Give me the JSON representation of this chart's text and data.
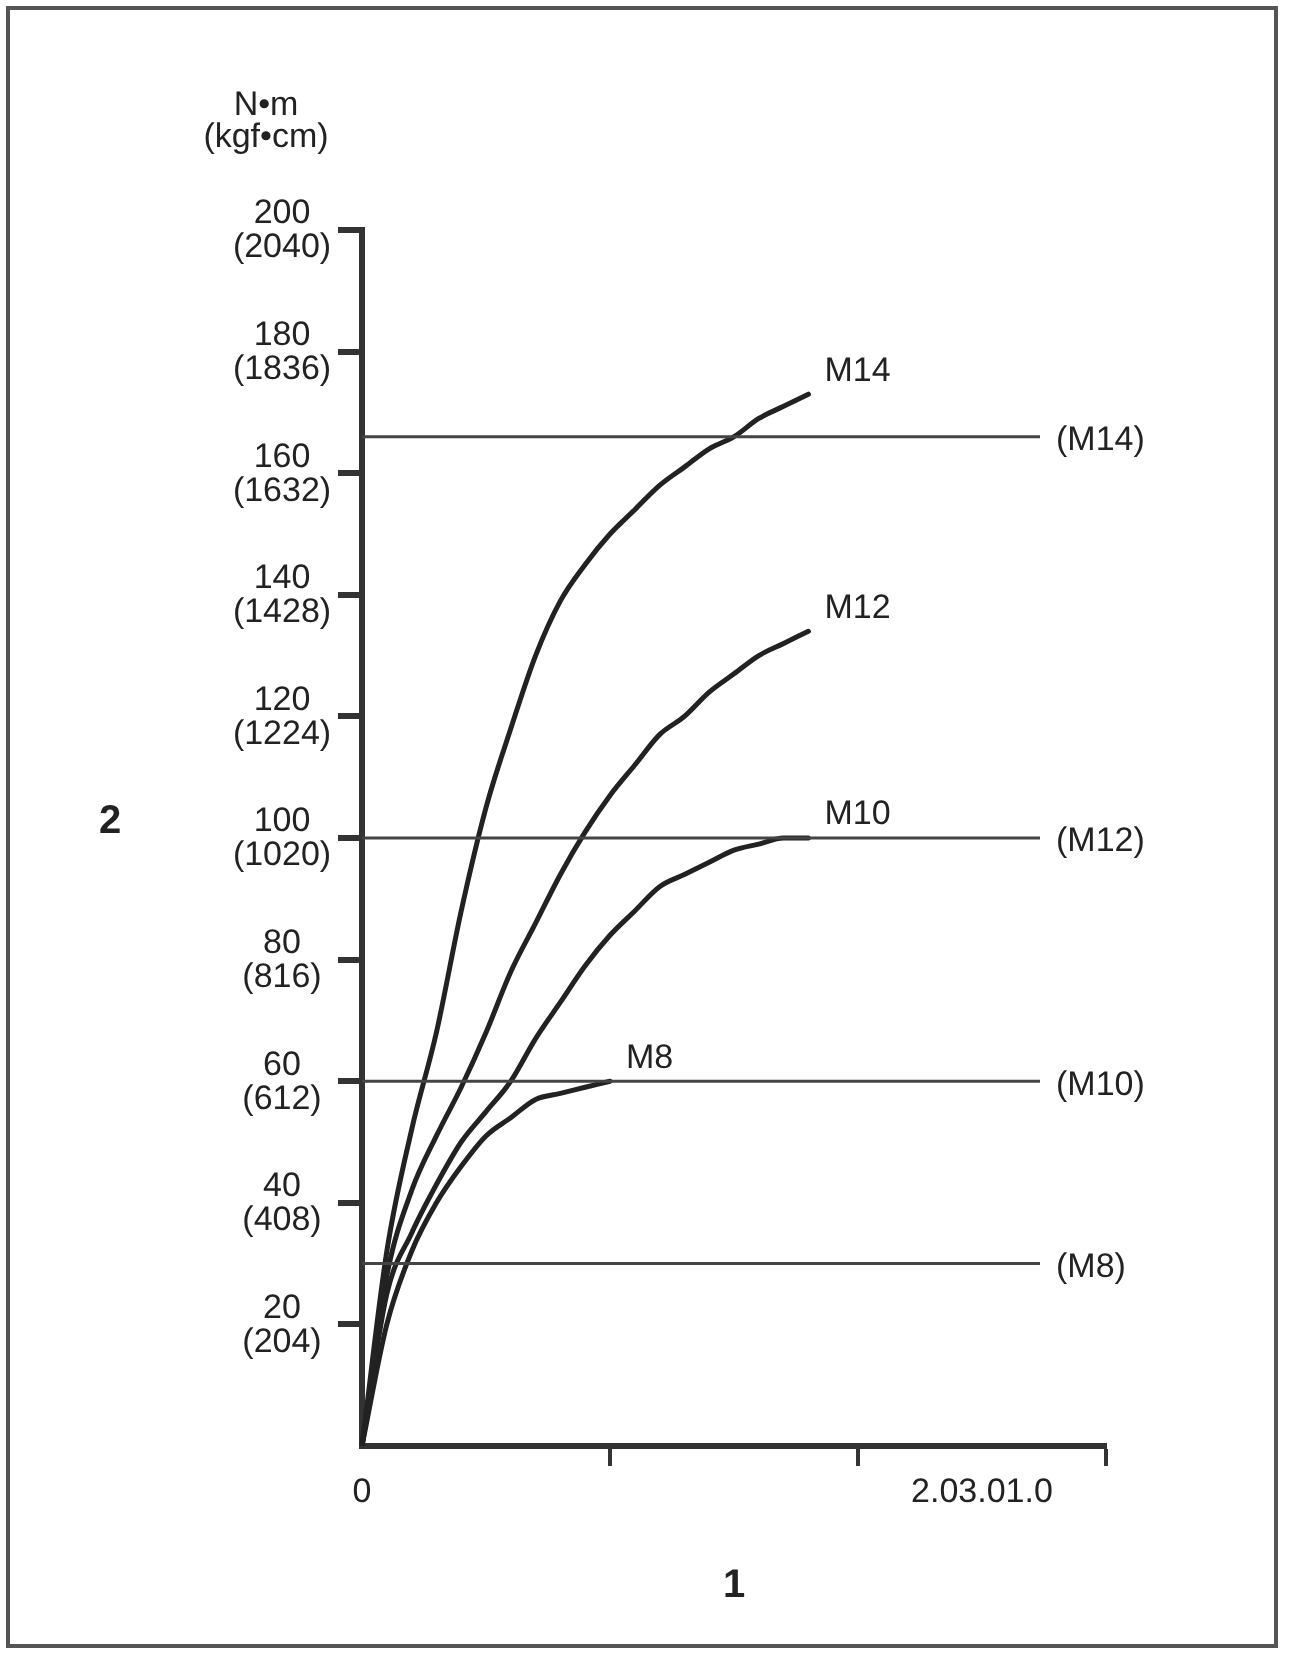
{
  "chart_data": {
    "type": "line",
    "xlabel": "1",
    "y2label": "2",
    "annotations": [
      "N•m\n(kgf•cm)"
    ],
    "categories": [
      "0",
      null,
      null,
      null,
      null,
      null,
      null,
      null,
      null,
      null,
      null,
      null,
      null,
      null,
      null,
      null,
      null,
      null,
      null,
      null,
      null,
      null,
      null,
      null,
      null,
      "2.03.01.0",
      null,
      null,
      null,
      null,
      null
    ],
    "ylim": [
      0,
      200
    ],
    "yticks": [
      20,
      40,
      60,
      80,
      100,
      120,
      140,
      160,
      180,
      200
    ],
    "y2lim": [
      0,
      2040
    ],
    "y2ticks": [
      {
        "value": 204,
        "label": "(204)"
      },
      {
        "value": 408,
        "label": "(408)"
      },
      {
        "value": 612,
        "label": "(612)"
      },
      {
        "value": 816,
        "label": "(816)"
      },
      {
        "value": 1020,
        "label": "(1020)"
      },
      {
        "value": 1224,
        "label": "(1224)"
      },
      {
        "value": 1428,
        "label": "(1428)"
      },
      {
        "value": 1632,
        "label": "(1632)"
      },
      {
        "value": 1836,
        "label": "(1836)"
      },
      {
        "value": 2040,
        "label": "(2040)"
      }
    ],
    "grid": false,
    "legend": false,
    "marker": "none",
    "line_style": "solid",
    "series": [
      {
        "name": "M14",
        "color": "#222222",
        "values": [
          0,
          32,
          52,
          68,
          88,
          105,
          118,
          130,
          139,
          145,
          150,
          154,
          158,
          161,
          164,
          166,
          169,
          171,
          173,
          null,
          null,
          null,
          null,
          null,
          null,
          null,
          null,
          null,
          null,
          null,
          null
        ]
      },
      {
        "name": "M12",
        "color": "#222222",
        "values": [
          0,
          28,
          42,
          51,
          59,
          68,
          78,
          86,
          94,
          101,
          107,
          112,
          117,
          120,
          124,
          127,
          130,
          132,
          134,
          null,
          null,
          null,
          null,
          null,
          null,
          null,
          null,
          null,
          null,
          null,
          null
        ]
      },
      {
        "name": "M10",
        "color": "#222222",
        "values": [
          0,
          25,
          35,
          43,
          50,
          55,
          60,
          67,
          73,
          79,
          84,
          88,
          92,
          94,
          96,
          98,
          99,
          100,
          100,
          null,
          null,
          null,
          null,
          null,
          null,
          null,
          null,
          null,
          null,
          null,
          null
        ]
      },
      {
        "name": "M8",
        "color": "#222222",
        "values": [
          0,
          20,
          32,
          40,
          46,
          51,
          54,
          57,
          58,
          59,
          60,
          null,
          null,
          null,
          null,
          null,
          null,
          null,
          null,
          null,
          null,
          null,
          null,
          null,
          null,
          null,
          null,
          null,
          null,
          null,
          null
        ]
      }
    ],
    "ref_lines": [
      {
        "axis": "y",
        "value": 166,
        "label": "(M14)",
        "color": "#444444"
      },
      {
        "axis": "y",
        "value": 100,
        "label": "(M12)",
        "color": "#444444"
      },
      {
        "axis": "y",
        "value": 60,
        "label": "(M10)",
        "color": "#444444"
      },
      {
        "axis": "y",
        "value": 30,
        "label": "(M8)",
        "color": "#444444"
      }
    ]
  }
}
